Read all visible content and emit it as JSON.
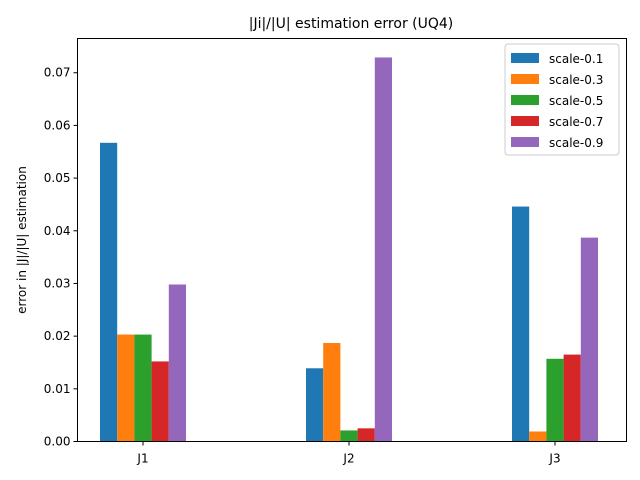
{
  "chart_data": {
    "type": "bar",
    "title": "|Ji|/|U| estimation error (UQ4)",
    "xlabel": "",
    "ylabel": "error in  |J|/|U| estimation",
    "categories": [
      "J1",
      "J2",
      "J3"
    ],
    "ylim": [
      0,
      0.0765
    ],
    "yticks": [
      "0.00",
      "0.01",
      "0.02",
      "0.03",
      "0.04",
      "0.05",
      "0.06",
      "0.07"
    ],
    "grid": false,
    "legend_position": "top-right",
    "series": [
      {
        "name": "scale-0.1",
        "color": "#1f77b4",
        "values": [
          0.0567,
          0.0139,
          0.0446
        ]
      },
      {
        "name": "scale-0.3",
        "color": "#ff7f0e",
        "values": [
          0.0203,
          0.0187,
          0.0019
        ]
      },
      {
        "name": "scale-0.5",
        "color": "#2ca02c",
        "values": [
          0.0203,
          0.0021,
          0.0157
        ]
      },
      {
        "name": "scale-0.7",
        "color": "#d62728",
        "values": [
          0.0152,
          0.0025,
          0.0165
        ]
      },
      {
        "name": "scale-0.9",
        "color": "#9467bd",
        "values": [
          0.0298,
          0.0729,
          0.0387
        ]
      }
    ]
  }
}
